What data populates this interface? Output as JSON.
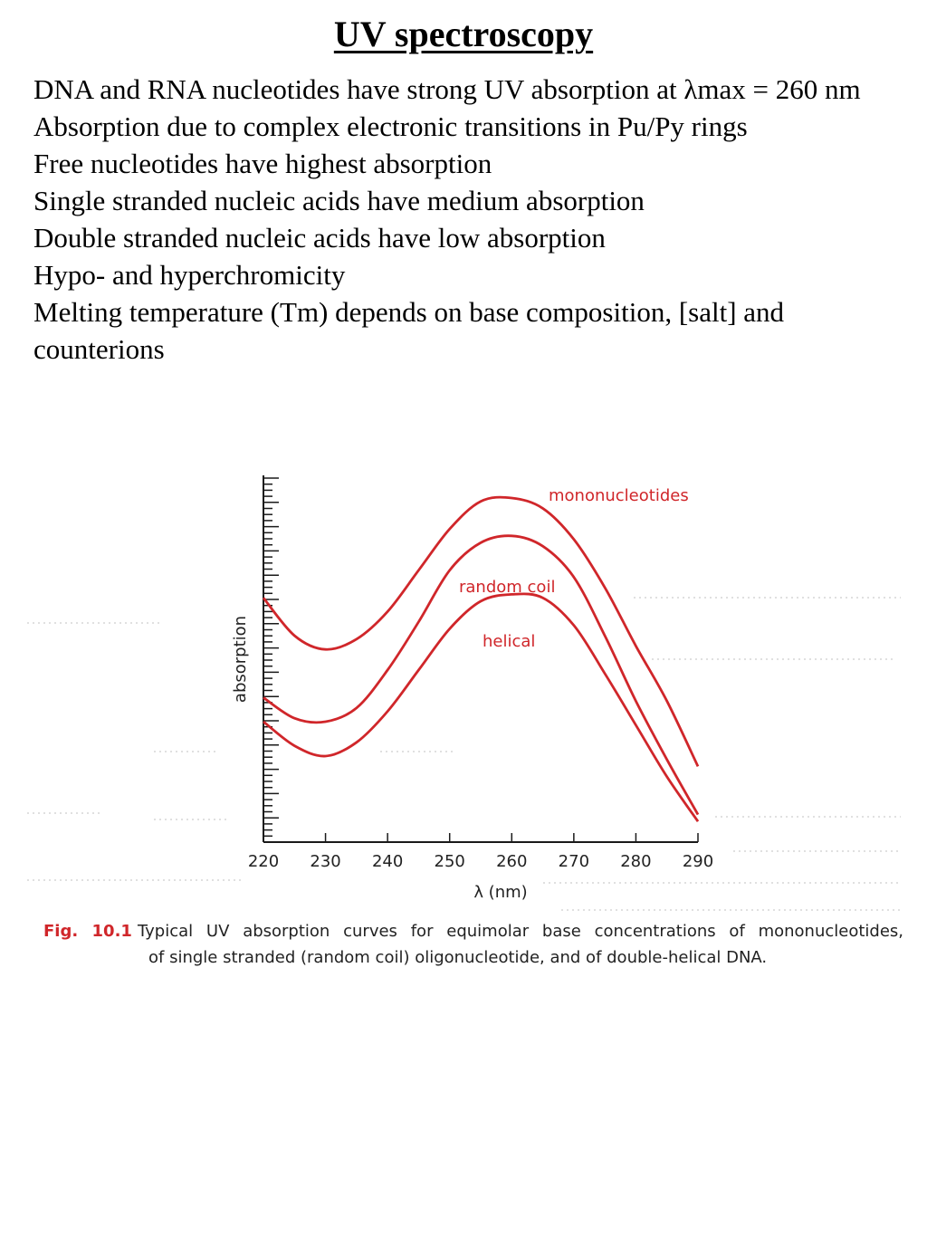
{
  "title": "UV spectroscopy",
  "bullets": [
    "DNA and RNA nucleotides have strong UV absorption at λmax = 260 nm",
    "Absorption due to complex electronic transitions in Pu/Py rings",
    "Free nucleotides have highest absorption",
    "Single stranded nucleic acids have medium absorption",
    "Double stranded nucleic acids have low absorption",
    "Hypo- and hyperchromicity",
    "Melting temperature (Tm) depends on base composition, [salt] and counterions"
  ],
  "figure": {
    "label": "Fig. 10.1",
    "caption_line1": "Typical UV absorption curves for equimolar base concentrations of mononucleotides,",
    "caption_line2": "of single stranded (random coil) oligonucleotide, and of double-helical DNA."
  },
  "chart_data": {
    "type": "line",
    "xlabel": "λ (nm)",
    "ylabel": "absorption",
    "xlim": [
      220,
      290
    ],
    "ylim": [
      0,
      1
    ],
    "xticks": [
      220,
      230,
      240,
      250,
      260,
      270,
      280,
      290
    ],
    "grid": false,
    "series": [
      {
        "name": "mononucleotides",
        "color": "#d0262a",
        "x": [
          220,
          225,
          230,
          235,
          240,
          245,
          250,
          255,
          260,
          265,
          270,
          275,
          280,
          285,
          290
        ],
        "y": [
          0.71,
          0.6,
          0.56,
          0.59,
          0.67,
          0.79,
          0.91,
          0.99,
          1.0,
          0.97,
          0.88,
          0.74,
          0.57,
          0.41,
          0.22
        ]
      },
      {
        "name": "random coil",
        "color": "#d0262a",
        "x": [
          220,
          225,
          230,
          235,
          240,
          245,
          250,
          255,
          260,
          265,
          270,
          275,
          280,
          285,
          290
        ],
        "y": [
          0.42,
          0.36,
          0.35,
          0.39,
          0.5,
          0.64,
          0.79,
          0.87,
          0.89,
          0.86,
          0.77,
          0.6,
          0.41,
          0.24,
          0.08
        ]
      },
      {
        "name": "helical",
        "color": "#d0262a",
        "x": [
          220,
          225,
          230,
          235,
          240,
          245,
          250,
          255,
          260,
          265,
          270,
          275,
          280,
          285,
          290
        ],
        "y": [
          0.35,
          0.28,
          0.25,
          0.29,
          0.38,
          0.5,
          0.62,
          0.7,
          0.72,
          0.71,
          0.63,
          0.49,
          0.34,
          0.19,
          0.06
        ]
      }
    ]
  }
}
